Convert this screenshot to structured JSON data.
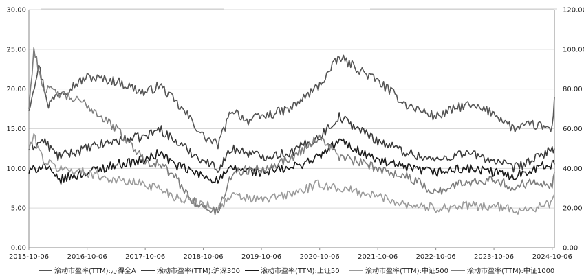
{
  "chart_data": {
    "type": "line",
    "title": "",
    "x_tick_labels": [
      "2015-10-06",
      "2016-10-06",
      "2017-10-06",
      "2018-10-06",
      "2019-10-06",
      "2020-10-06",
      "2021-10-06",
      "2022-10-06",
      "2023-10-06",
      "2024-10-06"
    ],
    "x_range": [
      "2015-10-06",
      "2024-10-20"
    ],
    "left_axis": {
      "ticks": [
        "0.00",
        "5.00",
        "10.00",
        "15.00",
        "20.00",
        "25.00",
        "30.00"
      ],
      "ylim": [
        0,
        30
      ]
    },
    "right_axis": {
      "ticks": [
        "0.00",
        "20.00",
        "40.00",
        "60.00",
        "80.00",
        "100.00",
        "120.00"
      ],
      "ylim": [
        0,
        120
      ]
    },
    "grid": "horizontal",
    "legend_position": "bottom",
    "series": [
      {
        "name": "滚动市盈率(TTM):万得全A",
        "axis": "left",
        "color": "#555555",
        "x": [
          "2015-10-06",
          "2015-12-06",
          "2016-02-06",
          "2016-04-06",
          "2016-06-06",
          "2016-10-06",
          "2017-04-06",
          "2017-10-06",
          "2018-01-06",
          "2018-04-06",
          "2018-07-06",
          "2018-10-06",
          "2019-01-06",
          "2019-04-06",
          "2019-07-06",
          "2019-10-06",
          "2020-04-06",
          "2020-10-06",
          "2021-02-06",
          "2021-10-06",
          "2022-04-06",
          "2022-10-06",
          "2023-04-06",
          "2023-10-06",
          "2024-02-06",
          "2024-06-06",
          "2024-10-06",
          "2024-10-20"
        ],
        "values": [
          17.5,
          23.0,
          18.0,
          19.5,
          20.0,
          21.5,
          21.0,
          19.5,
          20.5,
          18.5,
          16.5,
          14.0,
          13.0,
          17.5,
          16.0,
          16.5,
          17.5,
          20.5,
          24.0,
          21.0,
          18.0,
          16.5,
          18.0,
          17.0,
          15.0,
          15.5,
          15.0,
          19.0
        ]
      },
      {
        "name": "滚动市盈率(TTM):沪深300",
        "axis": "left",
        "color": "#3a3a3a",
        "x": [
          "2015-10-06",
          "2016-01-06",
          "2016-04-06",
          "2016-10-06",
          "2017-04-06",
          "2017-10-06",
          "2018-01-06",
          "2018-04-06",
          "2018-10-06",
          "2019-01-06",
          "2019-04-06",
          "2019-10-06",
          "2020-04-06",
          "2020-10-06",
          "2021-02-06",
          "2021-10-06",
          "2022-04-06",
          "2022-10-06",
          "2023-04-06",
          "2023-10-06",
          "2024-02-06",
          "2024-06-06",
          "2024-10-06",
          "2024-10-20"
        ],
        "values": [
          12.5,
          13.5,
          11.5,
          12.5,
          13.5,
          14.0,
          15.0,
          13.5,
          11.0,
          10.0,
          12.5,
          11.5,
          12.0,
          14.0,
          16.5,
          13.5,
          12.0,
          11.0,
          12.0,
          11.0,
          10.0,
          11.0,
          12.5,
          12.5
        ]
      },
      {
        "name": "滚动市盈率(TTM):上证50",
        "axis": "left",
        "color": "#1a1a1a",
        "x": [
          "2015-10-06",
          "2016-01-06",
          "2016-04-06",
          "2016-10-06",
          "2017-04-06",
          "2017-10-06",
          "2018-01-06",
          "2018-04-06",
          "2018-10-06",
          "2019-01-06",
          "2019-04-06",
          "2019-10-06",
          "2020-04-06",
          "2020-10-06",
          "2021-02-06",
          "2021-10-06",
          "2022-04-06",
          "2022-10-06",
          "2023-04-06",
          "2023-10-06",
          "2024-02-06",
          "2024-06-06",
          "2024-10-06",
          "2024-10-20"
        ],
        "values": [
          9.5,
          10.5,
          8.5,
          9.5,
          10.5,
          11.0,
          12.0,
          10.5,
          9.0,
          8.5,
          10.0,
          9.5,
          10.0,
          11.5,
          13.5,
          11.0,
          10.0,
          9.5,
          10.0,
          9.5,
          9.0,
          10.0,
          10.5,
          10.5
        ]
      },
      {
        "name": "滚动市盈率(TTM):中证500",
        "axis": "right",
        "color": "#9a9a9a",
        "x": [
          "2015-10-06",
          "2015-11-06",
          "2016-01-06",
          "2016-04-06",
          "2016-10-06",
          "2017-04-06",
          "2017-10-06",
          "2018-01-06",
          "2018-04-06",
          "2018-07-06",
          "2018-10-06",
          "2019-01-06",
          "2019-04-06",
          "2019-10-06",
          "2020-04-06",
          "2020-10-06",
          "2021-02-06",
          "2021-10-06",
          "2022-04-06",
          "2022-10-06",
          "2023-04-06",
          "2023-10-06",
          "2024-02-06",
          "2024-06-06",
          "2024-10-06",
          "2024-10-20"
        ],
        "values": [
          50,
          56,
          44,
          40,
          38,
          34,
          32,
          30,
          26,
          24,
          22,
          20,
          26,
          24,
          27,
          32,
          30,
          26,
          22,
          20,
          21,
          21,
          19,
          20,
          22,
          27
        ]
      },
      {
        "name": "滚动市盈率(TTM):中证1000",
        "axis": "right",
        "color": "#7d7d7d",
        "x": [
          "2015-10-06",
          "2015-11-06",
          "2016-01-06",
          "2016-04-06",
          "2016-10-06",
          "2017-04-06",
          "2017-10-06",
          "2018-01-06",
          "2018-04-06",
          "2018-07-06",
          "2018-10-06",
          "2019-01-06",
          "2019-04-06",
          "2019-10-06",
          "2020-04-06",
          "2020-10-06",
          "2021-02-06",
          "2021-10-06",
          "2022-04-06",
          "2022-10-06",
          "2023-04-06",
          "2023-10-06",
          "2024-02-06",
          "2024-06-06",
          "2024-10-06",
          "2024-10-20"
        ],
        "values": [
          70,
          100,
          80,
          78,
          72,
          60,
          44,
          42,
          36,
          26,
          20,
          18,
          38,
          40,
          45,
          56,
          46,
          40,
          36,
          28,
          33,
          35,
          30,
          34,
          32,
          38
        ]
      }
    ]
  }
}
